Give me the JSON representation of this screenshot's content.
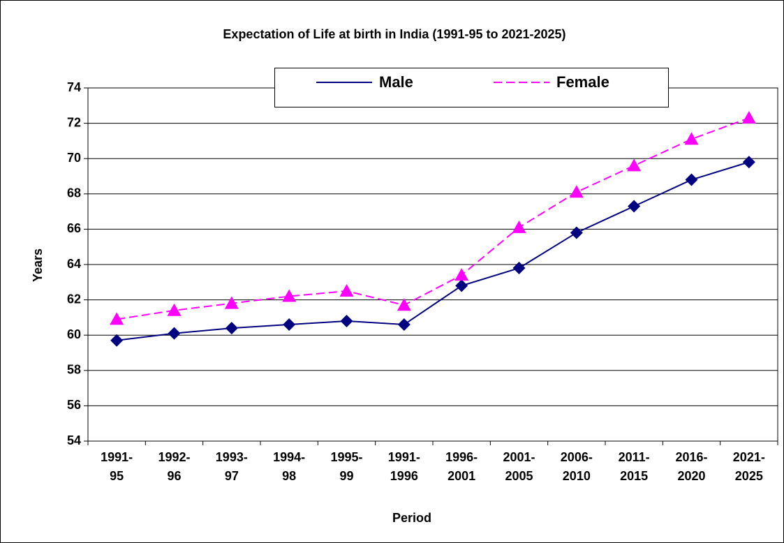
{
  "chart_data": {
    "type": "line",
    "title": "Expectation of Life at birth in India (1991-95 to 2021-2025)",
    "x_label": "Period",
    "y_label": "Years",
    "categories": [
      "1991-95",
      "1992-96",
      "1993-97",
      "1994-98",
      "1995-99",
      "1991-1996",
      "1996-2001",
      "2001-2005",
      "2006-2010",
      "2011-2015",
      "2016-2020",
      "2021-2025"
    ],
    "series": [
      {
        "name": "Male",
        "color": "#000080",
        "marker": "diamond",
        "dashed": false,
        "values": [
          59.7,
          60.1,
          60.4,
          60.6,
          60.8,
          60.6,
          62.8,
          63.8,
          65.8,
          67.3,
          68.8,
          69.8
        ]
      },
      {
        "name": "Female",
        "color": "#ff00ff",
        "marker": "triangle",
        "dashed": true,
        "values": [
          60.9,
          61.4,
          61.8,
          62.2,
          62.5,
          61.7,
          63.4,
          66.1,
          68.1,
          69.6,
          71.1,
          72.3
        ]
      }
    ],
    "ylim": [
      54,
      74
    ],
    "yticks": [
      54,
      56,
      58,
      60,
      62,
      64,
      66,
      68,
      70,
      72,
      74
    ],
    "grid": true,
    "legend": "top"
  }
}
